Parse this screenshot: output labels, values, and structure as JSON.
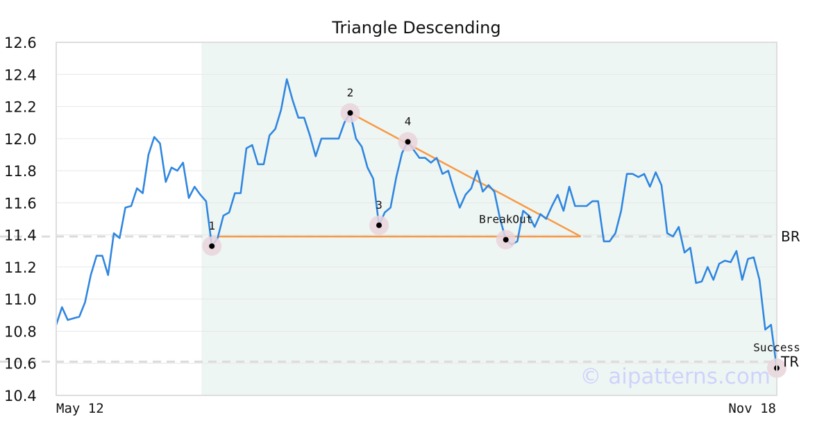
{
  "chart_data": {
    "type": "line",
    "title": "Triangle Descending",
    "xlabel": "",
    "ylabel": "",
    "x_tick_labels": [
      "May 12",
      "Nov 18"
    ],
    "yticks": [
      "12.6",
      "12.4",
      "12.2",
      "12.0",
      "11.8",
      "11.6",
      "11.4",
      "11.2",
      "11.0",
      "10.8",
      "10.6",
      "10.4"
    ],
    "ylim": [
      10.4,
      12.6
    ],
    "grid": true,
    "series": [
      {
        "color": "#2f86e0",
        "values": [
          10.84,
          10.95,
          10.87,
          10.88,
          10.89,
          10.98,
          11.15,
          11.27,
          11.27,
          11.15,
          11.41,
          11.38,
          11.57,
          11.58,
          11.69,
          11.66,
          11.9,
          12.01,
          11.97,
          11.73,
          11.82,
          11.8,
          11.85,
          11.63,
          11.7,
          11.65,
          11.61,
          11.33,
          11.38,
          11.52,
          11.54,
          11.66,
          11.66,
          11.94,
          11.96,
          11.84,
          11.84,
          12.02,
          12.06,
          12.18,
          12.37,
          12.24,
          12.13,
          12.13,
          12.02,
          11.89,
          12.0,
          12.0,
          12.0,
          12.0,
          12.1,
          12.16,
          12.0,
          11.95,
          11.82,
          11.75,
          11.46,
          11.54,
          11.57,
          11.76,
          11.91,
          11.98,
          11.93,
          11.88,
          11.88,
          11.85,
          11.88,
          11.78,
          11.8,
          11.68,
          11.57,
          11.65,
          11.69,
          11.8,
          11.67,
          11.71,
          11.67,
          11.5,
          11.37,
          11.34,
          11.36,
          11.55,
          11.52,
          11.45,
          11.53,
          11.5,
          11.58,
          11.65,
          11.55,
          11.7,
          11.58,
          11.58,
          11.58,
          11.61,
          11.61,
          11.36,
          11.36,
          11.41,
          11.55,
          11.78,
          11.78,
          11.76,
          11.78,
          11.7,
          11.79,
          11.71,
          11.41,
          11.39,
          11.45,
          11.29,
          11.32,
          11.1,
          11.11,
          11.2,
          11.12,
          11.22,
          11.24,
          11.23,
          11.3,
          11.12,
          11.25,
          11.26,
          11.12,
          10.81,
          10.84,
          10.57
        ]
      }
    ],
    "highlight_range": [
      27,
      125
    ],
    "pattern_points": [
      {
        "label": "1",
        "index": 27,
        "value": 11.33
      },
      {
        "label": "2",
        "index": 51,
        "value": 12.16
      },
      {
        "label": "3",
        "index": 56,
        "value": 11.46
      },
      {
        "label": "4",
        "index": 61,
        "value": 11.98
      },
      {
        "label": "BreakOut",
        "index": 78,
        "value": 11.37
      },
      {
        "label": "Success",
        "index": 125,
        "value": 10.57
      }
    ],
    "trend_lines": [
      {
        "from_index": 28,
        "from_value": 11.39,
        "to_index": 91,
        "to_value": 11.39
      },
      {
        "from_index": 51,
        "from_value": 12.16,
        "to_index": 91,
        "to_value": 11.39
      }
    ],
    "levels": [
      {
        "label": "BR",
        "value": 11.39
      },
      {
        "label": "TR",
        "value": 10.61
      }
    ],
    "colors": {
      "line": "#2f86e0",
      "pattern": "#f79a45",
      "highlight": "#eef6f3",
      "marker_halo": "#ead4dc",
      "level": "#dcdcdc",
      "grid": "#e6e6e6",
      "frame": "#dddddd"
    },
    "watermark": "© aipatterns.com"
  }
}
